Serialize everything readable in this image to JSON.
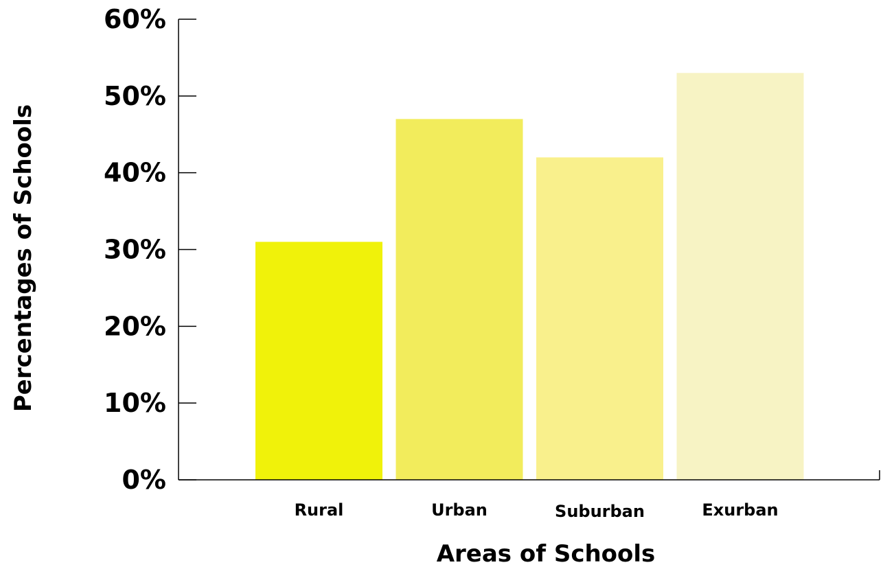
{
  "chart_data": {
    "type": "bar",
    "title": "",
    "xlabel": "Areas of Schools",
    "ylabel": "Percentages of Schools",
    "categories": [
      "Rural",
      "Urban",
      "Suburban",
      "Exurban"
    ],
    "values": [
      31,
      47,
      42,
      53
    ],
    "colors": [
      "#f0f20a",
      "#f2ec5c",
      "#f9f08c",
      "#f7f3c4"
    ],
    "ylim": [
      0,
      60
    ],
    "yticks": [
      0,
      10,
      20,
      30,
      40,
      50,
      60
    ],
    "ytick_labels": [
      "0%",
      "10%",
      "20%",
      "30%",
      "40%",
      "50%",
      "60%"
    ],
    "grid": false,
    "legend": "none"
  }
}
